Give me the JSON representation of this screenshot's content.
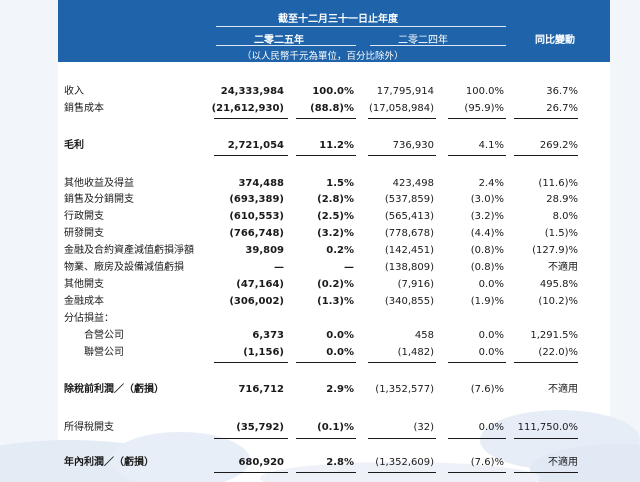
{
  "header": {
    "period": "截至十二月三十一日止年度",
    "year_2025": "二零二五年",
    "year_2024": "二零二四年",
    "change": "同比變動",
    "unit_note": "（以人民幣千元為單位，百分比除外）"
  },
  "rows": [
    {
      "label": "收入",
      "v2025": "24,333,984",
      "p2025": "100.0%",
      "v2024": "17,795,914",
      "p2024": "100.0%",
      "chg": "36.7%"
    },
    {
      "label": "銷售成本",
      "v2025": "(21,612,930)",
      "p2025": "(88.8)%",
      "v2024": "(17,058,984)",
      "p2024": "(95.9)%",
      "chg": "26.7%"
    },
    {
      "label": "毛利",
      "v2025": "2,721,054",
      "p2025": "11.2%",
      "v2024": "736,930",
      "p2024": "4.1%",
      "chg": "269.2%"
    },
    {
      "label": "其他收益及得益",
      "v2025": "374,488",
      "p2025": "1.5%",
      "v2024": "423,498",
      "p2024": "2.4%",
      "chg": "(11.6)%"
    },
    {
      "label": "銷售及分銷開支",
      "v2025": "(693,389)",
      "p2025": "(2.8)%",
      "v2024": "(537,859)",
      "p2024": "(3.0)%",
      "chg": "28.9%"
    },
    {
      "label": "行政開支",
      "v2025": "(610,553)",
      "p2025": "(2.5)%",
      "v2024": "(565,413)",
      "p2024": "(3.2)%",
      "chg": "8.0%"
    },
    {
      "label": "研發開支",
      "v2025": "(766,748)",
      "p2025": "(3.2)%",
      "v2024": "(778,678)",
      "p2024": "(4.4)%",
      "chg": "(1.5)%"
    },
    {
      "label": "金融及合約資產減值虧損淨額",
      "v2025": "39,809",
      "p2025": "0.2%",
      "v2024": "(142,451)",
      "p2024": "(0.8)%",
      "chg": "(127.9)%"
    },
    {
      "label": "物業、廠房及設備減值虧損",
      "v2025": "—",
      "p2025": "—",
      "v2024": "(138,809)",
      "p2024": "(0.8)%",
      "chg": "不適用"
    },
    {
      "label": "其他開支",
      "v2025": "(47,164)",
      "p2025": "(0.2)%",
      "v2024": "(7,916)",
      "p2024": "0.0%",
      "chg": "495.8%"
    },
    {
      "label": "金融成本",
      "v2025": "(306,002)",
      "p2025": "(1.3)%",
      "v2024": "(340,855)",
      "p2024": "(1.9)%",
      "chg": "(10.2)%"
    },
    {
      "label": "分佔損益：",
      "v2025": "",
      "p2025": "",
      "v2024": "",
      "p2024": "",
      "chg": ""
    },
    {
      "label": "合營公司",
      "v2025": "6,373",
      "p2025": "0.0%",
      "v2024": "458",
      "p2024": "0.0%",
      "chg": "1,291.5%"
    },
    {
      "label": "聯營公司",
      "v2025": "(1,156)",
      "p2025": "0.0%",
      "v2024": "(1,482)",
      "p2024": "0.0%",
      "chg": "(22.0)%"
    },
    {
      "label": "除稅前利潤／（虧損）",
      "v2025": "716,712",
      "p2025": "2.9%",
      "v2024": "(1,352,577)",
      "p2024": "(7.6)%",
      "chg": "不適用"
    },
    {
      "label": "所得稅開支",
      "v2025": "(35,792)",
      "p2025": "(0.1)%",
      "v2024": "(32)",
      "p2024": "0.0%",
      "chg": "111,750.0%"
    },
    {
      "label": "年內利潤／（虧損）",
      "v2025": "680,920",
      "p2025": "2.8%",
      "v2024": "(1,352,609)",
      "p2024": "(7.6)%",
      "chg": "不適用"
    }
  ]
}
